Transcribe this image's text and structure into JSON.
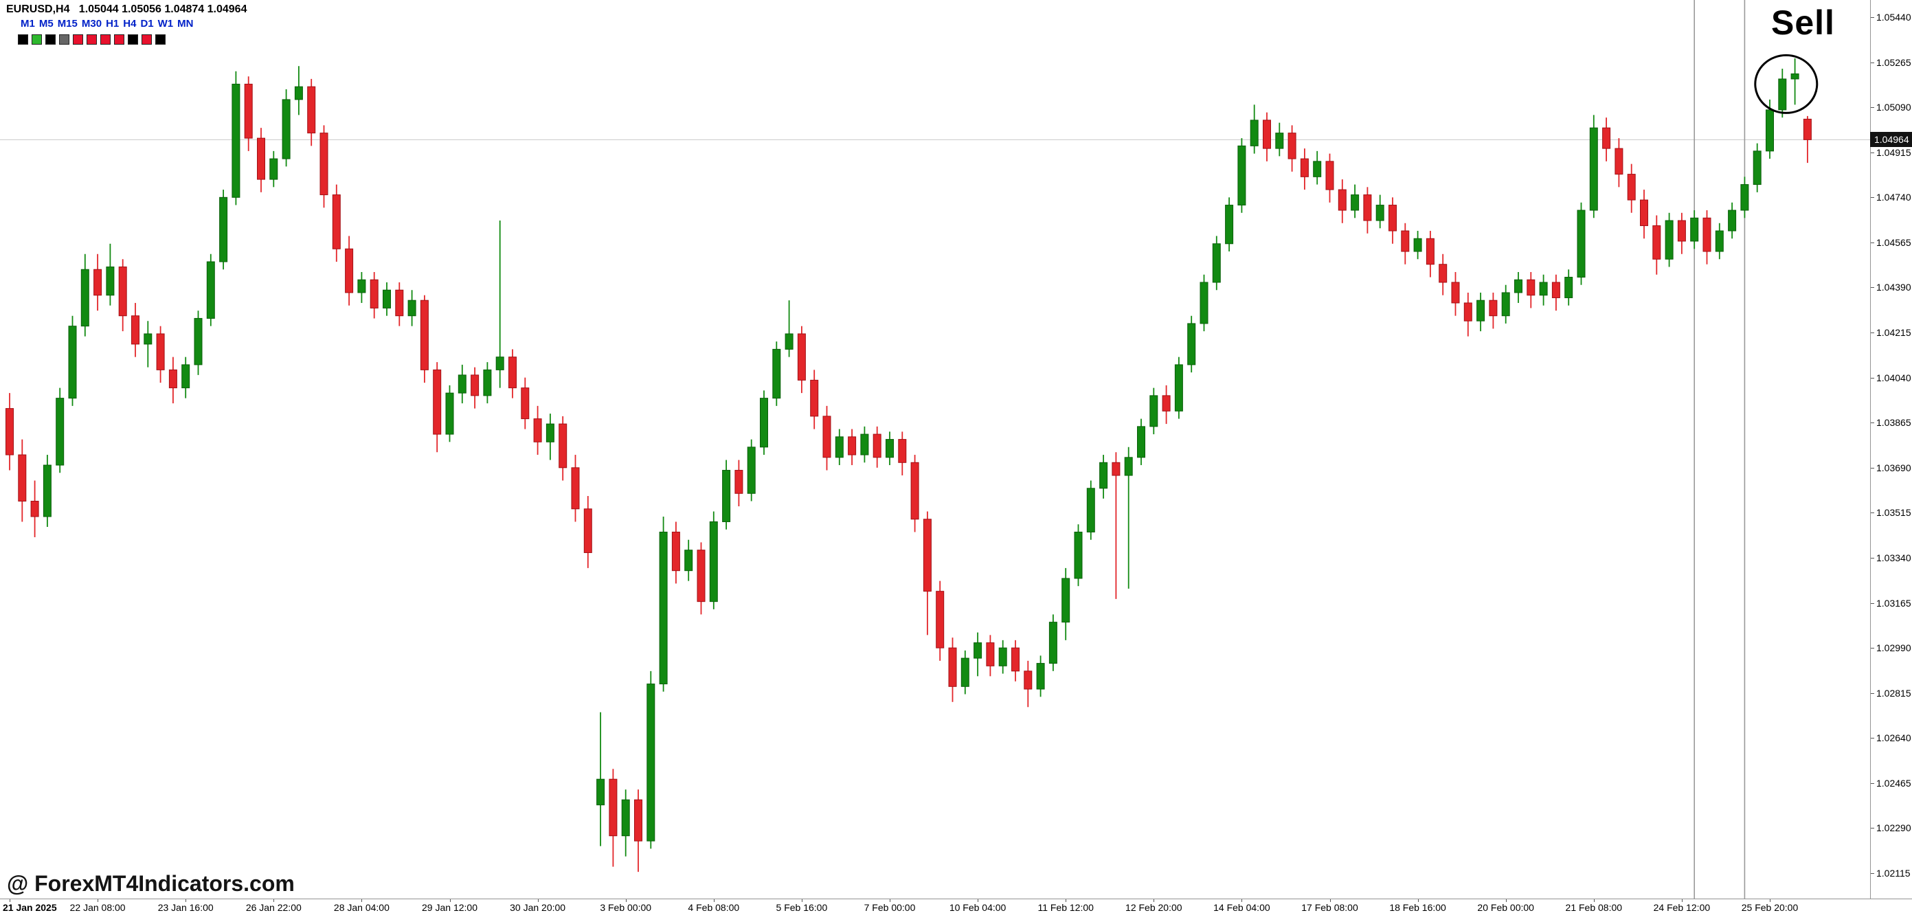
{
  "header": {
    "ohlc_line": "EURUSD,H4   1.05044 1.05056 1.04874 1.04964",
    "symbol": "EURUSD",
    "timeframe": "H4",
    "open": "1.05044",
    "high": "1.05056",
    "low": "1.04874",
    "close": "1.04964"
  },
  "toolbar": {
    "timeframes": [
      {
        "label": "M1",
        "active": false
      },
      {
        "label": "M5",
        "active": false
      },
      {
        "label": "M15",
        "active": false
      },
      {
        "label": "M30",
        "active": false
      },
      {
        "label": "H1",
        "active": false
      },
      {
        "label": "H4",
        "active": true
      },
      {
        "label": "D1",
        "active": false
      },
      {
        "label": "W1",
        "active": false
      },
      {
        "label": "MN",
        "active": false
      }
    ],
    "swatches": [
      "#000000",
      "#2eb82e",
      "#000000",
      "#666666",
      "#e8112d",
      "#e8112d",
      "#e8112d",
      "#e8112d",
      "#000000",
      "#e8112d",
      "#000000"
    ]
  },
  "annotations": {
    "sell_label": "Sell",
    "circle": {
      "candle_index": 141.3,
      "price": 1.0518
    },
    "vlines": [
      {
        "candle_index": 134
      },
      {
        "candle_index": 138
      }
    ],
    "bid_line_price": 1.04964
  },
  "watermark": {
    "text": "@ ForexMT4Indicators.com"
  },
  "chart_data": {
    "type": "candlestick",
    "title": "EURUSD H4 candlestick chart with Sell signal",
    "current_price": 1.04964,
    "current_price_label": "1.04964",
    "label_every_n_candles": 7,
    "x_labels": [
      "21 Jan 2025",
      "22 Jan 08:00",
      "23 Jan 16:00",
      "26 Jan 22:00",
      "28 Jan 04:00",
      "29 Jan 12:00",
      "30 Jan 20:00",
      "3 Feb 00:00",
      "4 Feb 08:00",
      "5 Feb 16:00",
      "7 Feb 00:00",
      "10 Feb 04:00",
      "11 Feb 12:00",
      "12 Feb 20:00",
      "14 Feb 04:00",
      "17 Feb 08:00",
      "18 Feb 16:00",
      "20 Feb 00:00",
      "21 Feb 08:00",
      "24 Feb 12:00",
      "25 Feb 20:00"
    ],
    "y_axis": {
      "labels": [
        "1.05440",
        "1.05265",
        "1.05090",
        "1.04915",
        "1.04740",
        "1.04565",
        "1.04390",
        "1.04215",
        "1.04040",
        "1.03865",
        "1.03690",
        "1.03515",
        "1.03340",
        "1.03165",
        "1.02990",
        "1.02815",
        "1.02640",
        "1.02465",
        "1.02290",
        "1.02115"
      ],
      "top_price": 1.0544,
      "bottom_price": 1.02115,
      "step": 0.00175
    },
    "colors": {
      "up": "#128a12",
      "up_border": "#0a5f0a",
      "down": "#e3262a",
      "down_border": "#a21015",
      "bid_line": "#c8c8c8",
      "vline": "#999999"
    },
    "candles": [
      [
        1.0392,
        1.0398,
        1.0368,
        1.0374
      ],
      [
        1.0374,
        1.038,
        1.0348,
        1.0356
      ],
      [
        1.0356,
        1.0364,
        1.0342,
        1.035
      ],
      [
        1.035,
        1.0374,
        1.0346,
        1.037
      ],
      [
        1.037,
        1.04,
        1.0367,
        1.0396
      ],
      [
        1.0396,
        1.0428,
        1.0393,
        1.0424
      ],
      [
        1.0424,
        1.0452,
        1.042,
        1.0446
      ],
      [
        1.0446,
        1.0452,
        1.043,
        1.0436
      ],
      [
        1.0436,
        1.0456,
        1.0432,
        1.0447
      ],
      [
        1.0447,
        1.045,
        1.0422,
        1.0428
      ],
      [
        1.0428,
        1.0433,
        1.0412,
        1.0417
      ],
      [
        1.0417,
        1.0426,
        1.0408,
        1.0421
      ],
      [
        1.0421,
        1.0424,
        1.0402,
        1.0407
      ],
      [
        1.0407,
        1.0412,
        1.0394,
        1.04
      ],
      [
        1.04,
        1.0412,
        1.0396,
        1.0409
      ],
      [
        1.0409,
        1.043,
        1.0405,
        1.0427
      ],
      [
        1.0427,
        1.0452,
        1.0424,
        1.0449
      ],
      [
        1.0449,
        1.0477,
        1.0446,
        1.0474
      ],
      [
        1.0474,
        1.0523,
        1.0471,
        1.0518
      ],
      [
        1.0518,
        1.0521,
        1.0492,
        1.0497
      ],
      [
        1.0497,
        1.0501,
        1.0476,
        1.0481
      ],
      [
        1.0481,
        1.0492,
        1.0478,
        1.0489
      ],
      [
        1.0489,
        1.0516,
        1.0486,
        1.0512
      ],
      [
        1.0512,
        1.0525,
        1.0506,
        1.0517
      ],
      [
        1.0517,
        1.052,
        1.0494,
        1.0499
      ],
      [
        1.0499,
        1.0502,
        1.047,
        1.0475
      ],
      [
        1.0475,
        1.0479,
        1.0449,
        1.0454
      ],
      [
        1.0454,
        1.0459,
        1.0432,
        1.0437
      ],
      [
        1.0437,
        1.0445,
        1.0433,
        1.0442
      ],
      [
        1.0442,
        1.0445,
        1.0427,
        1.0431
      ],
      [
        1.0431,
        1.0441,
        1.0428,
        1.0438
      ],
      [
        1.0438,
        1.0441,
        1.0424,
        1.0428
      ],
      [
        1.0428,
        1.0438,
        1.0424,
        1.0434
      ],
      [
        1.0434,
        1.0436,
        1.0402,
        1.0407
      ],
      [
        1.0407,
        1.041,
        1.0375,
        1.0382
      ],
      [
        1.0382,
        1.0401,
        1.0379,
        1.0398
      ],
      [
        1.0398,
        1.0409,
        1.0394,
        1.0405
      ],
      [
        1.0405,
        1.0408,
        1.0392,
        1.0397
      ],
      [
        1.0397,
        1.041,
        1.0394,
        1.0407
      ],
      [
        1.0407,
        1.0465,
        1.04,
        1.0412
      ],
      [
        1.0412,
        1.0415,
        1.0396,
        1.04
      ],
      [
        1.04,
        1.0404,
        1.0384,
        1.0388
      ],
      [
        1.0388,
        1.0393,
        1.0374,
        1.0379
      ],
      [
        1.0379,
        1.039,
        1.0372,
        1.0386
      ],
      [
        1.0386,
        1.0389,
        1.0364,
        1.0369
      ],
      [
        1.0369,
        1.0374,
        1.0348,
        1.0353
      ],
      [
        1.0353,
        1.0358,
        1.033,
        1.0336
      ],
      [
        1.0238,
        1.0274,
        1.0222,
        1.0248
      ],
      [
        1.0248,
        1.0252,
        1.0214,
        1.0226
      ],
      [
        1.0226,
        1.0244,
        1.0218,
        1.024
      ],
      [
        1.024,
        1.0244,
        1.0212,
        1.0224
      ],
      [
        1.0224,
        1.029,
        1.0221,
        1.0285
      ],
      [
        1.0285,
        1.035,
        1.0282,
        1.0344
      ],
      [
        1.0344,
        1.0348,
        1.0324,
        1.0329
      ],
      [
        1.0329,
        1.0341,
        1.0325,
        1.0337
      ],
      [
        1.0337,
        1.034,
        1.0312,
        1.0317
      ],
      [
        1.0317,
        1.0352,
        1.0314,
        1.0348
      ],
      [
        1.0348,
        1.0372,
        1.0345,
        1.0368
      ],
      [
        1.0368,
        1.0372,
        1.0354,
        1.0359
      ],
      [
        1.0359,
        1.038,
        1.0356,
        1.0377
      ],
      [
        1.0377,
        1.0399,
        1.0374,
        1.0396
      ],
      [
        1.0396,
        1.0418,
        1.0393,
        1.0415
      ],
      [
        1.0415,
        1.0434,
        1.0412,
        1.0421
      ],
      [
        1.0421,
        1.0424,
        1.0398,
        1.0403
      ],
      [
        1.0403,
        1.0407,
        1.0384,
        1.0389
      ],
      [
        1.0389,
        1.0393,
        1.0368,
        1.0373
      ],
      [
        1.0373,
        1.0384,
        1.037,
        1.0381
      ],
      [
        1.0381,
        1.0384,
        1.037,
        1.0374
      ],
      [
        1.0374,
        1.0385,
        1.0371,
        1.0382
      ],
      [
        1.0382,
        1.0385,
        1.0369,
        1.0373
      ],
      [
        1.0373,
        1.0383,
        1.037,
        1.038
      ],
      [
        1.038,
        1.0383,
        1.0366,
        1.0371
      ],
      [
        1.0371,
        1.0374,
        1.0344,
        1.0349
      ],
      [
        1.0349,
        1.0352,
        1.0304,
        1.0321
      ],
      [
        1.0321,
        1.0325,
        1.0294,
        1.0299
      ],
      [
        1.0299,
        1.0303,
        1.0278,
        1.0284
      ],
      [
        1.0284,
        1.0298,
        1.0281,
        1.0295
      ],
      [
        1.0295,
        1.0305,
        1.0288,
        1.0301
      ],
      [
        1.0301,
        1.0304,
        1.0288,
        1.0292
      ],
      [
        1.0292,
        1.0302,
        1.0289,
        1.0299
      ],
      [
        1.0299,
        1.0302,
        1.0286,
        1.029
      ],
      [
        1.029,
        1.0294,
        1.0276,
        1.0283
      ],
      [
        1.0283,
        1.0296,
        1.028,
        1.0293
      ],
      [
        1.0293,
        1.0312,
        1.029,
        1.0309
      ],
      [
        1.0309,
        1.033,
        1.0302,
        1.0326
      ],
      [
        1.0326,
        1.0347,
        1.0323,
        1.0344
      ],
      [
        1.0344,
        1.0364,
        1.0341,
        1.0361
      ],
      [
        1.0361,
        1.0374,
        1.0357,
        1.0371
      ],
      [
        1.0371,
        1.0375,
        1.0318,
        1.0366
      ],
      [
        1.0366,
        1.0377,
        1.0322,
        1.0373
      ],
      [
        1.0373,
        1.0388,
        1.037,
        1.0385
      ],
      [
        1.0385,
        1.04,
        1.0382,
        1.0397
      ],
      [
        1.0397,
        1.0401,
        1.0386,
        1.0391
      ],
      [
        1.0391,
        1.0412,
        1.0388,
        1.0409
      ],
      [
        1.0409,
        1.0428,
        1.0406,
        1.0425
      ],
      [
        1.0425,
        1.0444,
        1.0422,
        1.0441
      ],
      [
        1.0441,
        1.0459,
        1.0438,
        1.0456
      ],
      [
        1.0456,
        1.0474,
        1.0453,
        1.0471
      ],
      [
        1.0471,
        1.0497,
        1.0468,
        1.0494
      ],
      [
        1.0494,
        1.051,
        1.0491,
        1.0504
      ],
      [
        1.0504,
        1.0507,
        1.0488,
        1.0493
      ],
      [
        1.0493,
        1.0503,
        1.049,
        1.0499
      ],
      [
        1.0499,
        1.0502,
        1.0484,
        1.0489
      ],
      [
        1.0489,
        1.0493,
        1.0477,
        1.0482
      ],
      [
        1.0482,
        1.0492,
        1.0479,
        1.0488
      ],
      [
        1.0488,
        1.0491,
        1.0472,
        1.0477
      ],
      [
        1.0477,
        1.0481,
        1.0464,
        1.0469
      ],
      [
        1.0469,
        1.0479,
        1.0466,
        1.0475
      ],
      [
        1.0475,
        1.0478,
        1.046,
        1.0465
      ],
      [
        1.0465,
        1.0475,
        1.0462,
        1.0471
      ],
      [
        1.0471,
        1.0474,
        1.0456,
        1.0461
      ],
      [
        1.0461,
        1.0464,
        1.0448,
        1.0453
      ],
      [
        1.0453,
        1.0461,
        1.045,
        1.0458
      ],
      [
        1.0458,
        1.0461,
        1.0443,
        1.0448
      ],
      [
        1.0448,
        1.0452,
        1.0436,
        1.0441
      ],
      [
        1.0441,
        1.0445,
        1.0428,
        1.0433
      ],
      [
        1.0433,
        1.0437,
        1.042,
        1.0426
      ],
      [
        1.0426,
        1.0437,
        1.0422,
        1.0434
      ],
      [
        1.0434,
        1.0437,
        1.0423,
        1.0428
      ],
      [
        1.0428,
        1.044,
        1.0425,
        1.0437
      ],
      [
        1.0437,
        1.0445,
        1.0433,
        1.0442
      ],
      [
        1.0442,
        1.0445,
        1.0431,
        1.0436
      ],
      [
        1.0436,
        1.0444,
        1.0432,
        1.0441
      ],
      [
        1.0441,
        1.0444,
        1.043,
        1.0435
      ],
      [
        1.0435,
        1.0446,
        1.0432,
        1.0443
      ],
      [
        1.0443,
        1.0472,
        1.044,
        1.0469
      ],
      [
        1.0469,
        1.0506,
        1.0466,
        1.0501
      ],
      [
        1.0501,
        1.0505,
        1.0488,
        1.0493
      ],
      [
        1.0493,
        1.0497,
        1.0478,
        1.0483
      ],
      [
        1.0483,
        1.0487,
        1.0468,
        1.0473
      ],
      [
        1.0473,
        1.0477,
        1.0458,
        1.0463
      ],
      [
        1.0463,
        1.0467,
        1.0444,
        1.045
      ],
      [
        1.045,
        1.0468,
        1.0447,
        1.0465
      ],
      [
        1.0465,
        1.0468,
        1.0452,
        1.0457
      ],
      [
        1.0457,
        1.0469,
        1.0454,
        1.0466
      ],
      [
        1.0466,
        1.0469,
        1.0448,
        1.0453
      ],
      [
        1.0453,
        1.0464,
        1.045,
        1.0461
      ],
      [
        1.0461,
        1.0472,
        1.0458,
        1.0469
      ],
      [
        1.0469,
        1.0482,
        1.0466,
        1.0479
      ],
      [
        1.0479,
        1.0495,
        1.0476,
        1.0492
      ],
      [
        1.0492,
        1.0512,
        1.0489,
        1.0508
      ],
      [
        1.0508,
        1.0524,
        1.0505,
        1.052
      ],
      [
        1.052,
        1.0528,
        1.051,
        1.0522
      ],
      [
        1.05044,
        1.05056,
        1.04874,
        1.04964
      ]
    ]
  }
}
